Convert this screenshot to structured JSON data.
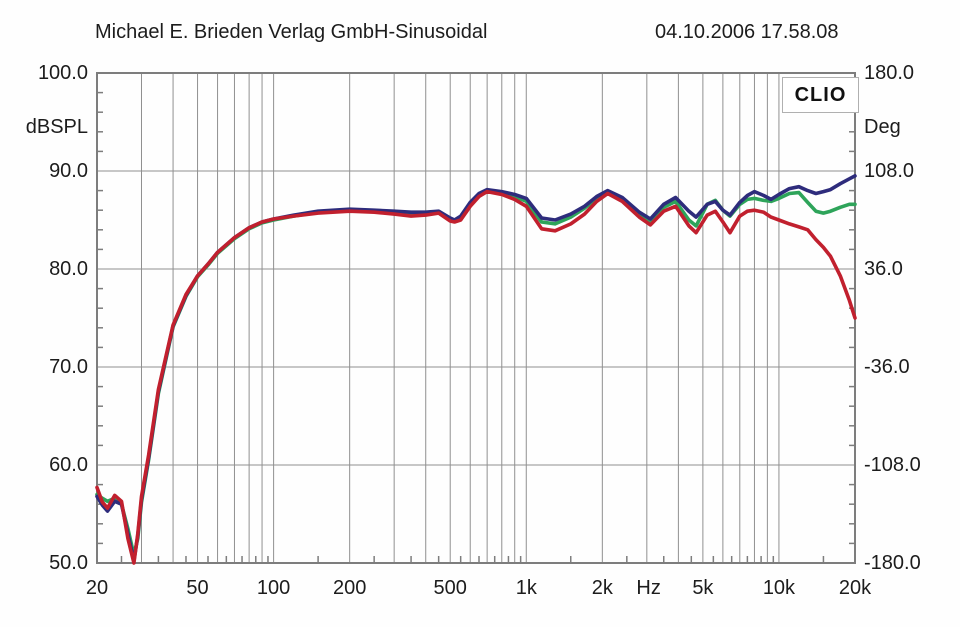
{
  "header": {
    "title": "Michael E. Brieden Verlag GmbH-Sinusoidal",
    "datetime": "04.10.2006 17.58.08"
  },
  "watermark": "CLIO",
  "colors": {
    "trace_red": "#c1202e",
    "trace_green": "#2ea45a",
    "trace_blue": "#2e2c7c",
    "grid": "#909090",
    "border": "#7d7d7d",
    "text": "#1c1c1c"
  },
  "chart_data": {
    "type": "line",
    "title": "Michael E. Brieden Verlag GmbH-Sinusoidal",
    "x_scale": "log",
    "x_unit": "Hz",
    "x_range": [
      20,
      20000
    ],
    "grid": true,
    "legend": "none",
    "y_left": {
      "label": "dBSPL",
      "range": [
        50,
        100
      ],
      "tick_labels": [
        "100.0",
        "90.0",
        "80.0",
        "70.0",
        "60.0",
        "50.0"
      ],
      "tick_values": [
        100,
        90,
        80,
        70,
        60,
        50
      ]
    },
    "y_right": {
      "label": "Deg",
      "range": [
        -180,
        180
      ],
      "tick_labels": [
        "180.0",
        "108.0",
        "36.0",
        "-36.0",
        "-108.0",
        "-180.0"
      ],
      "tick_values": [
        180,
        108,
        36,
        -36,
        -108,
        -180
      ]
    },
    "x_axis_labels": [
      {
        "text": "20",
        "freq": 20
      },
      {
        "text": "50",
        "freq": 50
      },
      {
        "text": "100",
        "freq": 100
      },
      {
        "text": "200",
        "freq": 200
      },
      {
        "text": "500",
        "freq": 500
      },
      {
        "text": "1k",
        "freq": 1000
      },
      {
        "text": "2k",
        "freq": 2000
      },
      {
        "text": "Hz",
        "freq": 3050
      },
      {
        "text": "5k",
        "freq": 5000
      },
      {
        "text": "10k",
        "freq": 10000
      },
      {
        "text": "20k",
        "freq": 20000
      }
    ],
    "gridline_freqs": [
      30,
      40,
      50,
      60,
      70,
      80,
      90,
      100,
      200,
      300,
      400,
      500,
      600,
      700,
      800,
      900,
      1000,
      2000,
      3000,
      4000,
      5000,
      6000,
      7000,
      8000,
      9000,
      10000
    ],
    "gridline_dbs": [
      60,
      70,
      80,
      90
    ],
    "frequencies": [
      20,
      21,
      22,
      23.5,
      25,
      26.5,
      28,
      29,
      30,
      32,
      35,
      40,
      45,
      50,
      55,
      60,
      70,
      80,
      90,
      100,
      120,
      150,
      200,
      250,
      300,
      350,
      400,
      450,
      500,
      520,
      550,
      600,
      650,
      700,
      800,
      900,
      1000,
      1150,
      1300,
      1500,
      1700,
      1900,
      2100,
      2400,
      2800,
      3100,
      3500,
      3900,
      4400,
      4700,
      5200,
      5600,
      6000,
      6400,
      7000,
      7500,
      8000,
      8700,
      9300,
      10000,
      11000,
      12000,
      13000,
      14000,
      15000,
      16000,
      17500,
      19000,
      20000
    ],
    "series": [
      {
        "name": "red",
        "color": "#c1202e",
        "unit": "dBSPL",
        "values": [
          57.7,
          56.2,
          55.6,
          56.9,
          56.3,
          52.5,
          50.0,
          53.0,
          56.8,
          61.0,
          67.7,
          74.3,
          77.4,
          79.3,
          80.5,
          81.7,
          83.2,
          84.2,
          84.8,
          85.1,
          85.4,
          85.7,
          85.9,
          85.8,
          85.6,
          85.4,
          85.5,
          85.7,
          84.9,
          84.8,
          85.0,
          86.4,
          87.4,
          87.9,
          87.6,
          87.1,
          86.4,
          84.1,
          83.9,
          84.6,
          85.6,
          86.9,
          87.7,
          86.9,
          85.3,
          84.5,
          85.9,
          86.4,
          84.4,
          83.7,
          85.5,
          85.9,
          84.8,
          83.7,
          85.4,
          85.9,
          86.0,
          85.8,
          85.3,
          85.0,
          84.6,
          84.3,
          84.0,
          83.0,
          82.2,
          81.3,
          79.3,
          76.8,
          75.0
        ]
      },
      {
        "name": "green",
        "color": "#2ea45a",
        "unit": "dBSPL",
        "values": [
          57.0,
          56.6,
          56.3,
          56.6,
          56.0,
          53.5,
          50.8,
          52.5,
          56.2,
          60.5,
          67.3,
          74.1,
          77.2,
          79.2,
          80.4,
          81.6,
          83.1,
          84.1,
          84.7,
          85.0,
          85.4,
          85.8,
          86.0,
          85.9,
          85.8,
          85.7,
          85.7,
          85.8,
          85.1,
          84.9,
          85.2,
          86.6,
          87.5,
          88.0,
          87.8,
          87.4,
          86.9,
          84.8,
          84.6,
          85.3,
          86.2,
          87.2,
          87.9,
          87.1,
          85.6,
          84.9,
          86.3,
          86.9,
          85.0,
          84.4,
          86.6,
          87.0,
          86.0,
          85.4,
          86.6,
          87.1,
          87.2,
          87.0,
          86.9,
          87.2,
          87.7,
          87.8,
          86.8,
          85.9,
          85.7,
          85.9,
          86.3,
          86.6,
          86.6
        ]
      },
      {
        "name": "blue",
        "color": "#2e2c7c",
        "unit": "dBSPL",
        "values": [
          56.8,
          55.9,
          55.3,
          56.3,
          56.0,
          53.0,
          50.2,
          52.8,
          56.5,
          60.7,
          67.5,
          74.2,
          77.3,
          79.3,
          80.5,
          81.7,
          83.2,
          84.2,
          84.8,
          85.1,
          85.5,
          85.9,
          86.1,
          86.0,
          85.9,
          85.8,
          85.8,
          85.9,
          85.2,
          85.0,
          85.4,
          86.8,
          87.7,
          88.1,
          87.9,
          87.6,
          87.2,
          85.2,
          85.0,
          85.6,
          86.4,
          87.4,
          88.0,
          87.3,
          85.8,
          85.1,
          86.6,
          87.3,
          85.9,
          85.3,
          86.6,
          86.9,
          86.0,
          85.5,
          86.8,
          87.5,
          87.9,
          87.5,
          87.1,
          87.6,
          88.2,
          88.4,
          88.0,
          87.7,
          87.9,
          88.1,
          88.7,
          89.2,
          89.5
        ]
      }
    ]
  }
}
